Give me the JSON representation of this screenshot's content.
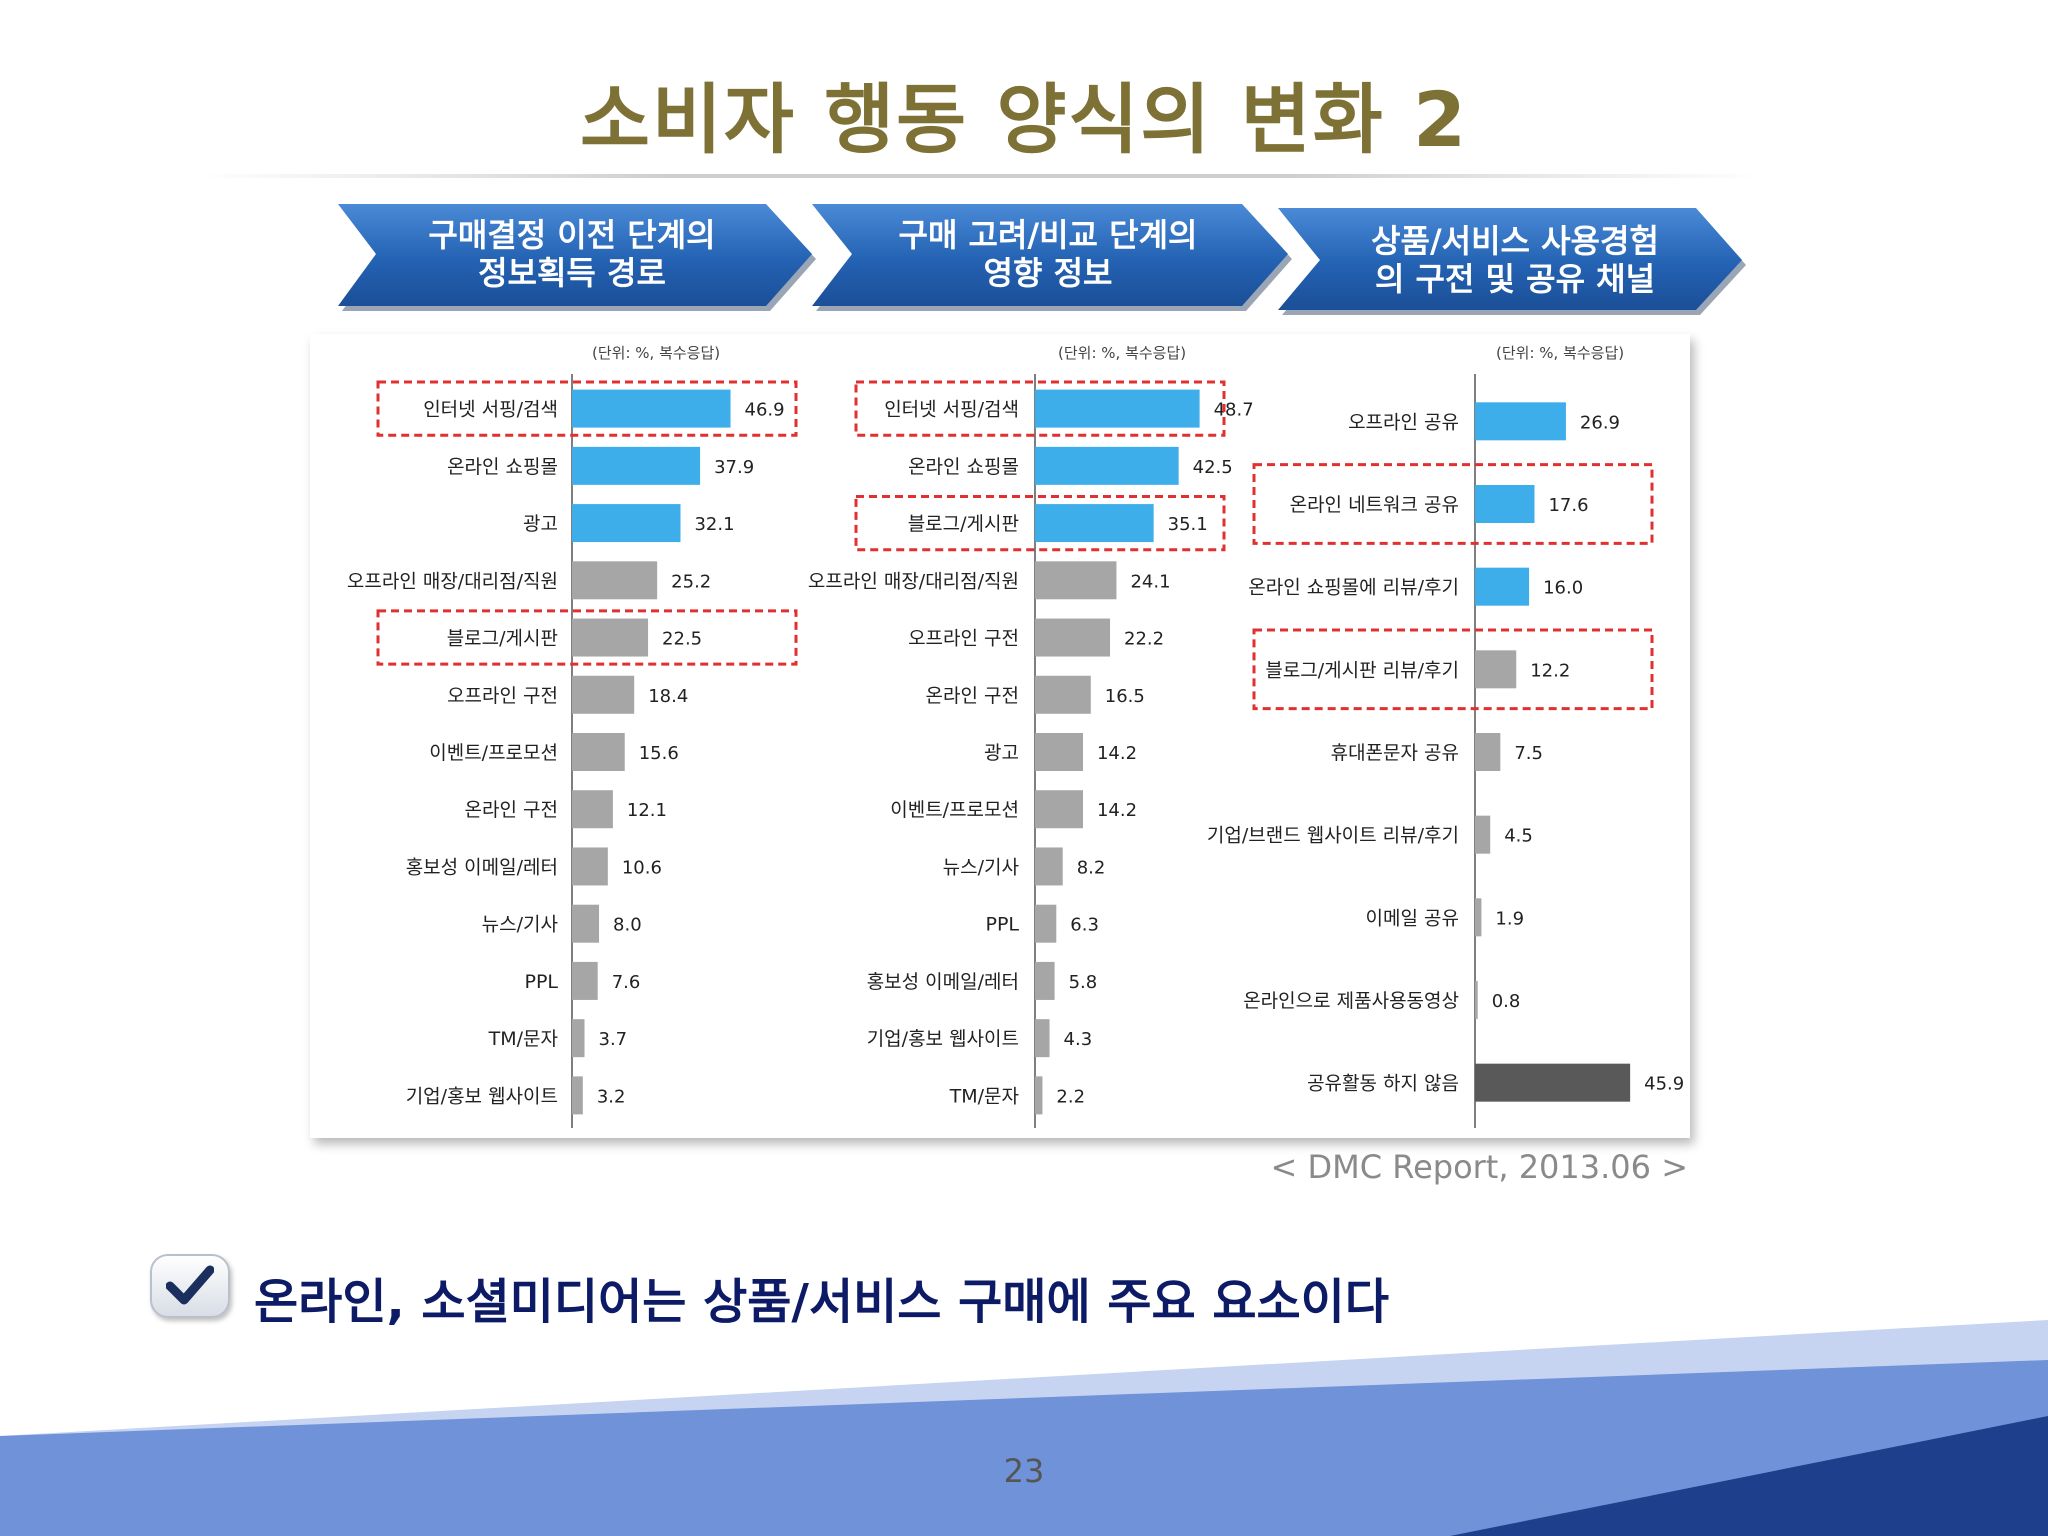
{
  "slide": {
    "title": "소비자 행동 양식의 변화 2",
    "source": "< DMC Report, 2013.06 >",
    "conclusion": "온라인, 소셜미디어는 상품/서비스 구매에 주요 요소이다",
    "page_number": "23"
  },
  "stages": [
    {
      "line1": "구매결정 이전 단계의",
      "line2": "정보획득 경로"
    },
    {
      "line1": "구매 고려/비교 단계의",
      "line2": "영향 정보"
    },
    {
      "line1": "상품/서비스 사용경험",
      "line2": "의 구전 및 공유 채널"
    }
  ],
  "colors": {
    "title": "#7d7135",
    "arrow": "#2a6ab8",
    "bar_blue": "#3daee9",
    "bar_gray": "#a6a6a6",
    "bar_dark": "#595959",
    "highlight": "#e03030",
    "conclusion": "#0d1b66"
  },
  "icons": {
    "check": "checkmark-icon"
  },
  "chart_data": [
    {
      "type": "bar",
      "orientation": "horizontal",
      "unit_note": "(단위:  %, 복수응답)",
      "categories": [
        "인터넷 서핑/검색",
        "온라인 쇼핑몰",
        "광고",
        "오프라인 매장/대리점/직원",
        "블로그/게시판",
        "오프라인 구전",
        "이벤트/프로모션",
        "온라인 구전",
        "홍보성 이메일/레터",
        "뉴스/기사",
        "PPL",
        "TM/문자",
        "기업/홍보 웹사이트"
      ],
      "values": [
        46.9,
        37.9,
        32.1,
        25.2,
        22.5,
        18.4,
        15.6,
        12.1,
        10.6,
        8.0,
        7.6,
        3.7,
        3.2
      ],
      "value_labels": [
        "46.9",
        "37.9",
        "32.1",
        "25.2",
        "22.5",
        "18.4",
        "15.6",
        "12.1",
        "10.6",
        "8.0",
        "7.6",
        "3.7",
        "3.2"
      ],
      "bar_colors": [
        "blue",
        "blue",
        "blue",
        "gray",
        "gray",
        "gray",
        "gray",
        "gray",
        "gray",
        "gray",
        "gray",
        "gray",
        "gray"
      ],
      "highlighted": [
        "인터넷 서핑/검색",
        "블로그/게시판"
      ]
    },
    {
      "type": "bar",
      "orientation": "horizontal",
      "unit_note": "(단위:  %, 복수응답)",
      "categories": [
        "인터넷 서핑/검색",
        "온라인 쇼핑몰",
        "블로그/게시판",
        "오프라인 매장/대리점/직원",
        "오프라인 구전",
        "온라인 구전",
        "광고",
        "이벤트/프로모션",
        "뉴스/기사",
        "PPL",
        "홍보성 이메일/레터",
        "기업/홍보 웹사이트",
        "TM/문자"
      ],
      "values": [
        48.7,
        42.5,
        35.1,
        24.1,
        22.2,
        16.5,
        14.2,
        14.2,
        8.2,
        6.3,
        5.8,
        4.3,
        2.2
      ],
      "value_labels": [
        "48.7",
        "42.5",
        "35.1",
        "24.1",
        "22.2",
        "16.5",
        "14.2",
        "14.2",
        "8.2",
        "6.3",
        "5.8",
        "4.3",
        "2.2"
      ],
      "bar_colors": [
        "blue",
        "blue",
        "blue",
        "gray",
        "gray",
        "gray",
        "gray",
        "gray",
        "gray",
        "gray",
        "gray",
        "gray",
        "gray"
      ],
      "highlighted": [
        "인터넷 서핑/검색",
        "블로그/게시판"
      ]
    },
    {
      "type": "bar",
      "orientation": "horizontal",
      "unit_note": "(단위:  %, 복수응답)",
      "categories": [
        "오프라인 공유",
        "온라인 네트워크 공유",
        "온라인 쇼핑몰에 리뷰/후기",
        "블로그/게시판 리뷰/후기",
        "휴대폰문자 공유",
        "기업/브랜드 웹사이트 리뷰/후기",
        "이메일 공유",
        "온라인으로 제품사용동영상",
        "공유활동 하지 않음"
      ],
      "values": [
        26.9,
        17.6,
        16.0,
        12.2,
        7.5,
        4.5,
        1.9,
        0.8,
        45.9
      ],
      "value_labels": [
        "26.9",
        "17.6",
        "16.0",
        "12.2",
        "7.5",
        "4.5",
        "1.9",
        "0.8",
        "45.9"
      ],
      "bar_colors": [
        "blue",
        "blue",
        "blue",
        "gray",
        "gray",
        "gray",
        "gray",
        "gray",
        "dark"
      ],
      "highlighted": [
        "온라인 네트워크 공유",
        "블로그/게시판 리뷰/후기"
      ]
    }
  ]
}
